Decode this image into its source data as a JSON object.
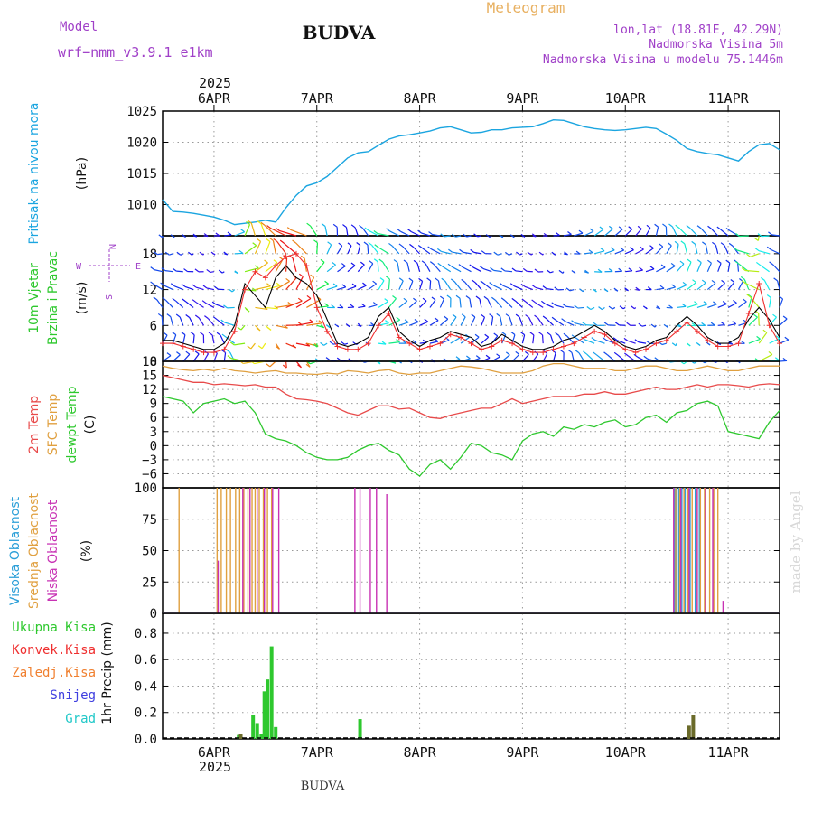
{
  "header": {
    "model_label": "Model",
    "model_name": "wrf−nmm_v3.9.1  e1km",
    "station": "BUDVA",
    "meteogram": "Meteogram",
    "lonlat": "lon,lat (18.81E, 42.29N)",
    "elevation": "Nadmorska Visina 5m",
    "model_elevation": "Nadmorska Visina u modelu 75.1446m",
    "credit": "made by Angel",
    "footer_station": "BUDVA"
  },
  "time_axis": {
    "year": "2025",
    "range_days": [
      5.5,
      11.5
    ],
    "ticks": [
      {
        "day": 6,
        "label": "6APR"
      },
      {
        "day": 7,
        "label": "7APR"
      },
      {
        "day": 8,
        "label": "8APR"
      },
      {
        "day": 9,
        "label": "9APR"
      },
      {
        "day": 10,
        "label": "10APR"
      },
      {
        "day": 11,
        "label": "11APR"
      }
    ]
  },
  "colors": {
    "pressure": "#1ba5e0",
    "wind_speed": "#ef2f2f",
    "wind_gust": "#000000",
    "temp_2m": "#e84a4a",
    "temp_sfc": "#e0a040",
    "dewpoint": "#2ec82e",
    "cloud_high": "#2c9fd8",
    "cloud_mid": "#e0a040",
    "cloud_low": "#c832b4",
    "precip_total": "#2ec82e",
    "precip_other": "#6b6b2a",
    "label_model": "#a040c8",
    "label_meteogram": "#e8b060"
  },
  "chart_data": [
    {
      "type": "line",
      "name": "pressure",
      "title": "Pritisak na nivou mora",
      "ylabel": "(hPa)",
      "ylim": [
        1005,
        1025
      ],
      "yticks": [
        1010,
        1015,
        1020,
        1025
      ],
      "grid": true,
      "x": [
        5.5,
        5.6,
        5.7,
        5.8,
        5.9,
        6.0,
        6.1,
        6.2,
        6.3,
        6.4,
        6.5,
        6.6,
        6.7,
        6.8,
        6.9,
        7.0,
        7.1,
        7.2,
        7.3,
        7.4,
        7.5,
        7.6,
        7.7,
        7.8,
        7.9,
        8.0,
        8.1,
        8.2,
        8.3,
        8.4,
        8.5,
        8.6,
        8.7,
        8.8,
        8.9,
        9.0,
        9.1,
        9.2,
        9.3,
        9.4,
        9.5,
        9.6,
        9.7,
        9.8,
        9.9,
        10.0,
        10.1,
        10.2,
        10.3,
        10.4,
        10.5,
        10.6,
        10.7,
        10.8,
        10.9,
        11.0,
        11.1,
        11.2,
        11.3,
        11.4,
        11.5
      ],
      "y": [
        1010.8,
        1008.9,
        1008.8,
        1008.6,
        1008.3,
        1008.0,
        1007.5,
        1006.8,
        1007.0,
        1007.2,
        1007.5,
        1007.2,
        1009.5,
        1011.5,
        1013.0,
        1013.5,
        1014.5,
        1016.0,
        1017.5,
        1018.3,
        1018.5,
        1019.5,
        1020.5,
        1021.0,
        1021.2,
        1021.5,
        1021.8,
        1022.3,
        1022.5,
        1022.0,
        1021.5,
        1021.6,
        1022.0,
        1022.0,
        1022.3,
        1022.4,
        1022.5,
        1023.0,
        1023.6,
        1023.5,
        1023.0,
        1022.5,
        1022.2,
        1022.0,
        1021.9,
        1022.0,
        1022.2,
        1022.4,
        1022.2,
        1021.3,
        1020.3,
        1019.0,
        1018.5,
        1018.2,
        1018.0,
        1017.5,
        1017.0,
        1018.5,
        1019.6,
        1019.8,
        1018.8
      ]
    },
    {
      "type": "line",
      "name": "wind",
      "title": "10m Vjetar Brzina i Pravac",
      "ylabel": "(m/s)",
      "ylim": [
        0,
        21
      ],
      "yticks": [
        0,
        6,
        12,
        18
      ],
      "compass": {
        "n": "N",
        "e": "E",
        "w": "W",
        "s": "S"
      },
      "barb_levels": [
        0,
        3,
        6,
        9,
        12,
        15,
        18,
        21
      ],
      "grid": true,
      "x": [
        5.5,
        5.6,
        5.7,
        5.8,
        5.9,
        6.0,
        6.1,
        6.2,
        6.3,
        6.4,
        6.5,
        6.6,
        6.7,
        6.8,
        6.9,
        7.0,
        7.1,
        7.2,
        7.3,
        7.4,
        7.5,
        7.6,
        7.7,
        7.8,
        7.9,
        8.0,
        8.1,
        8.2,
        8.3,
        8.4,
        8.5,
        8.6,
        8.7,
        8.8,
        8.9,
        9.0,
        9.1,
        9.2,
        9.3,
        9.4,
        9.5,
        9.6,
        9.7,
        9.8,
        9.9,
        10.0,
        10.1,
        10.2,
        10.3,
        10.4,
        10.5,
        10.6,
        10.7,
        10.8,
        10.9,
        11.0,
        11.1,
        11.2,
        11.3,
        11.4,
        11.5
      ],
      "speed": [
        3.0,
        3.0,
        2.5,
        2.0,
        1.5,
        1.5,
        2.0,
        5.0,
        12.0,
        15.0,
        14.0,
        16.0,
        17.5,
        18.0,
        16.0,
        9.0,
        5.0,
        2.5,
        2.0,
        2.0,
        3.0,
        6.0,
        8.0,
        4.0,
        3.0,
        2.0,
        2.5,
        3.0,
        4.5,
        4.0,
        3.0,
        2.0,
        2.5,
        3.5,
        3.0,
        2.0,
        1.5,
        1.5,
        2.0,
        2.5,
        3.0,
        4.0,
        5.0,
        4.5,
        3.0,
        2.0,
        1.5,
        2.0,
        3.0,
        3.5,
        5.0,
        6.5,
        5.0,
        3.5,
        2.5,
        2.5,
        3.0,
        8.0,
        13.0,
        6.0,
        3.0
      ],
      "gust": [
        3.5,
        3.5,
        3.0,
        2.5,
        2.0,
        2.0,
        3.0,
        6.0,
        13.0,
        11.0,
        9.0,
        14.0,
        16.0,
        14.0,
        13.0,
        11.0,
        7.0,
        3.0,
        2.5,
        3.0,
        4.0,
        7.5,
        9.0,
        5.0,
        3.5,
        2.5,
        3.5,
        4.0,
        5.0,
        4.5,
        4.0,
        2.5,
        3.0,
        4.5,
        3.5,
        2.5,
        2.0,
        2.0,
        2.5,
        3.5,
        4.0,
        5.0,
        6.0,
        5.0,
        3.5,
        2.5,
        2.0,
        2.5,
        3.5,
        4.0,
        6.0,
        7.5,
        6.0,
        4.0,
        3.0,
        3.0,
        4.0,
        7.0,
        9.0,
        7.0,
        4.0
      ]
    },
    {
      "type": "line",
      "name": "temperature",
      "title": "2m Temp / SFC Temp / dewpt Temp",
      "ylabel": "(C)",
      "ylim": [
        -9,
        18
      ],
      "yticks": [
        -6,
        -3,
        0,
        3,
        6,
        9,
        12,
        15,
        18
      ],
      "grid": true,
      "x": [
        5.5,
        5.6,
        5.7,
        5.8,
        5.9,
        6.0,
        6.1,
        6.2,
        6.3,
        6.4,
        6.5,
        6.6,
        6.7,
        6.8,
        6.9,
        7.0,
        7.1,
        7.2,
        7.3,
        7.4,
        7.5,
        7.6,
        7.7,
        7.8,
        7.9,
        8.0,
        8.1,
        8.2,
        8.3,
        8.4,
        8.5,
        8.6,
        8.7,
        8.8,
        8.9,
        9.0,
        9.1,
        9.2,
        9.3,
        9.4,
        9.5,
        9.6,
        9.7,
        9.8,
        9.9,
        10.0,
        10.1,
        10.2,
        10.3,
        10.4,
        10.5,
        10.6,
        10.7,
        10.8,
        10.9,
        11.0,
        11.1,
        11.2,
        11.3,
        11.4,
        11.5
      ],
      "series": [
        {
          "name": "SFC Temp",
          "values": [
            17.0,
            16.5,
            16.2,
            16.0,
            16.3,
            16.0,
            16.5,
            16.0,
            15.8,
            15.5,
            15.8,
            16.0,
            15.5,
            15.5,
            15.3,
            15.2,
            15.5,
            15.3,
            16.0,
            15.8,
            15.5,
            16.0,
            16.2,
            15.5,
            15.2,
            15.5,
            15.5,
            16.0,
            16.5,
            17.0,
            16.8,
            16.5,
            16.0,
            15.5,
            15.5,
            15.5,
            16.0,
            17.0,
            17.5,
            17.5,
            17.0,
            16.5,
            16.5,
            16.5,
            16.0,
            16.0,
            16.5,
            17.0,
            17.0,
            16.5,
            16.0,
            16.0,
            16.5,
            17.0,
            16.5,
            16.0,
            16.0,
            16.5,
            17.0,
            17.0,
            17.0
          ]
        },
        {
          "name": "2m Temp",
          "values": [
            15.0,
            14.5,
            14.0,
            13.5,
            13.5,
            13.0,
            13.2,
            13.0,
            12.8,
            13.0,
            12.5,
            12.5,
            11.0,
            10.0,
            9.8,
            9.5,
            9.0,
            8.0,
            7.0,
            6.5,
            7.5,
            8.5,
            8.5,
            7.8,
            8.0,
            7.0,
            6.0,
            5.8,
            6.5,
            7.0,
            7.5,
            8.0,
            8.0,
            9.0,
            10.0,
            9.0,
            9.5,
            10.0,
            10.5,
            10.5,
            10.5,
            11.0,
            11.0,
            11.5,
            11.0,
            11.0,
            11.5,
            12.0,
            12.5,
            12.0,
            12.0,
            12.5,
            13.0,
            12.5,
            13.0,
            13.0,
            12.8,
            12.5,
            13.0,
            13.2,
            13.0
          ]
        },
        {
          "name": "dewpt Temp",
          "values": [
            10.5,
            10.0,
            9.5,
            7.0,
            9.0,
            9.5,
            10.0,
            9.0,
            9.5,
            7.0,
            2.5,
            1.5,
            1.0,
            0.0,
            -1.5,
            -2.5,
            -3.0,
            -3.0,
            -2.5,
            -1.0,
            0.0,
            0.5,
            -1.0,
            -2.0,
            -5.0,
            -6.5,
            -4.0,
            -3.0,
            -5.0,
            -2.5,
            0.5,
            0.0,
            -1.5,
            -2.0,
            -3.0,
            1.0,
            2.5,
            3.0,
            2.0,
            4.0,
            3.5,
            4.5,
            4.0,
            5.0,
            5.5,
            4.0,
            4.5,
            6.0,
            6.5,
            5.0,
            7.0,
            7.5,
            9.0,
            9.5,
            8.5,
            3.0,
            2.5,
            2.0,
            1.5,
            5.0,
            7.5
          ]
        }
      ]
    },
    {
      "type": "bar",
      "name": "clouds",
      "title": "Visoka Oblacnost / Srednja Oblacnost / Niska Oblacnost",
      "ylabel": "(%)",
      "ylim": [
        0,
        100
      ],
      "yticks": [
        0,
        25,
        50,
        75,
        100
      ],
      "grid": true,
      "series": [
        {
          "name": "Visoka Oblacnost",
          "x": [
            10.48,
            10.5,
            10.52,
            10.55,
            10.58,
            10.6,
            10.63,
            10.68,
            10.72
          ],
          "values": [
            100,
            100,
            100,
            100,
            100,
            100,
            100,
            100,
            100
          ]
        },
        {
          "name": "Srednja Oblacnost",
          "x": [
            5.66,
            6.03,
            6.07,
            6.12,
            6.16,
            6.21,
            6.25,
            6.29,
            6.33,
            6.37,
            6.4,
            6.44,
            6.48,
            6.52,
            6.56,
            10.49,
            10.53,
            10.57,
            10.61,
            10.65,
            10.69,
            10.73,
            10.77,
            10.82,
            10.86,
            10.9
          ],
          "values": [
            100,
            100,
            100,
            100,
            100,
            100,
            100,
            100,
            100,
            100,
            100,
            100,
            100,
            100,
            100,
            100,
            100,
            100,
            100,
            100,
            100,
            100,
            100,
            100,
            100,
            100
          ]
        },
        {
          "name": "Niska Oblacnost",
          "x": [
            6.04,
            6.28,
            6.35,
            6.42,
            6.49,
            6.57,
            6.63,
            7.37,
            7.42,
            7.52,
            7.58,
            7.68,
            10.47,
            10.54,
            10.62,
            10.7,
            10.78,
            10.85,
            10.95
          ],
          "values": [
            42,
            100,
            100,
            100,
            100,
            100,
            100,
            100,
            100,
            100,
            100,
            95,
            100,
            100,
            100,
            100,
            100,
            100,
            10
          ]
        }
      ]
    },
    {
      "type": "bar",
      "name": "precipitation",
      "title": "Ukupna Kisa / Konvek.Kisa / Zaledj.Kisa / Snijeg / Grad",
      "ylabel": "1hr Precip (mm)",
      "ylim": [
        0,
        0.95
      ],
      "yticks": [
        0,
        0.2,
        0.4,
        0.6,
        0.8
      ],
      "grid": true,
      "series": [
        {
          "name": "Ukupna Kisa",
          "x": [
            6.24,
            6.38,
            6.42,
            6.46,
            6.49,
            6.52,
            6.56,
            6.6,
            7.42
          ],
          "values": [
            0.03,
            0.18,
            0.12,
            0.04,
            0.36,
            0.45,
            0.7,
            0.09,
            0.15
          ]
        },
        {
          "name": "Zaledj.Kisa",
          "x": [
            6.26,
            10.62,
            10.66
          ],
          "values": [
            0.04,
            0.1,
            0.18
          ]
        }
      ]
    }
  ],
  "legends": {
    "pressure": [
      "Pritisak na nivou mora"
    ],
    "pressure_unit": "(hPa)",
    "wind": [
      "10m Vjetar",
      "Brzina i Pravac"
    ],
    "wind_unit": "(m/s)",
    "temp": [
      "2m Temp",
      "SFC Temp",
      "dewpt Temp"
    ],
    "temp_unit": "(C)",
    "cloud": [
      "Visoka Oblacnost",
      "Srednja Oblacnost",
      "Niska Oblacnost"
    ],
    "cloud_unit": "(%)",
    "precip": [
      "Ukupna Kisa",
      "Konvek.Kisa",
      "Zaledj.Kisa",
      "Snijeg",
      "Grad"
    ],
    "precip_unit": "1hr Precip (mm)",
    "precip_colors": [
      "#2ec82e",
      "#ef2f2f",
      "#f08030",
      "#4040e0",
      "#20c8c8"
    ],
    "temp_colors": [
      "#e84a4a",
      "#e0a040",
      "#2ec82e"
    ],
    "cloud_colors": [
      "#2c9fd8",
      "#e0a040",
      "#c832b4"
    ]
  }
}
